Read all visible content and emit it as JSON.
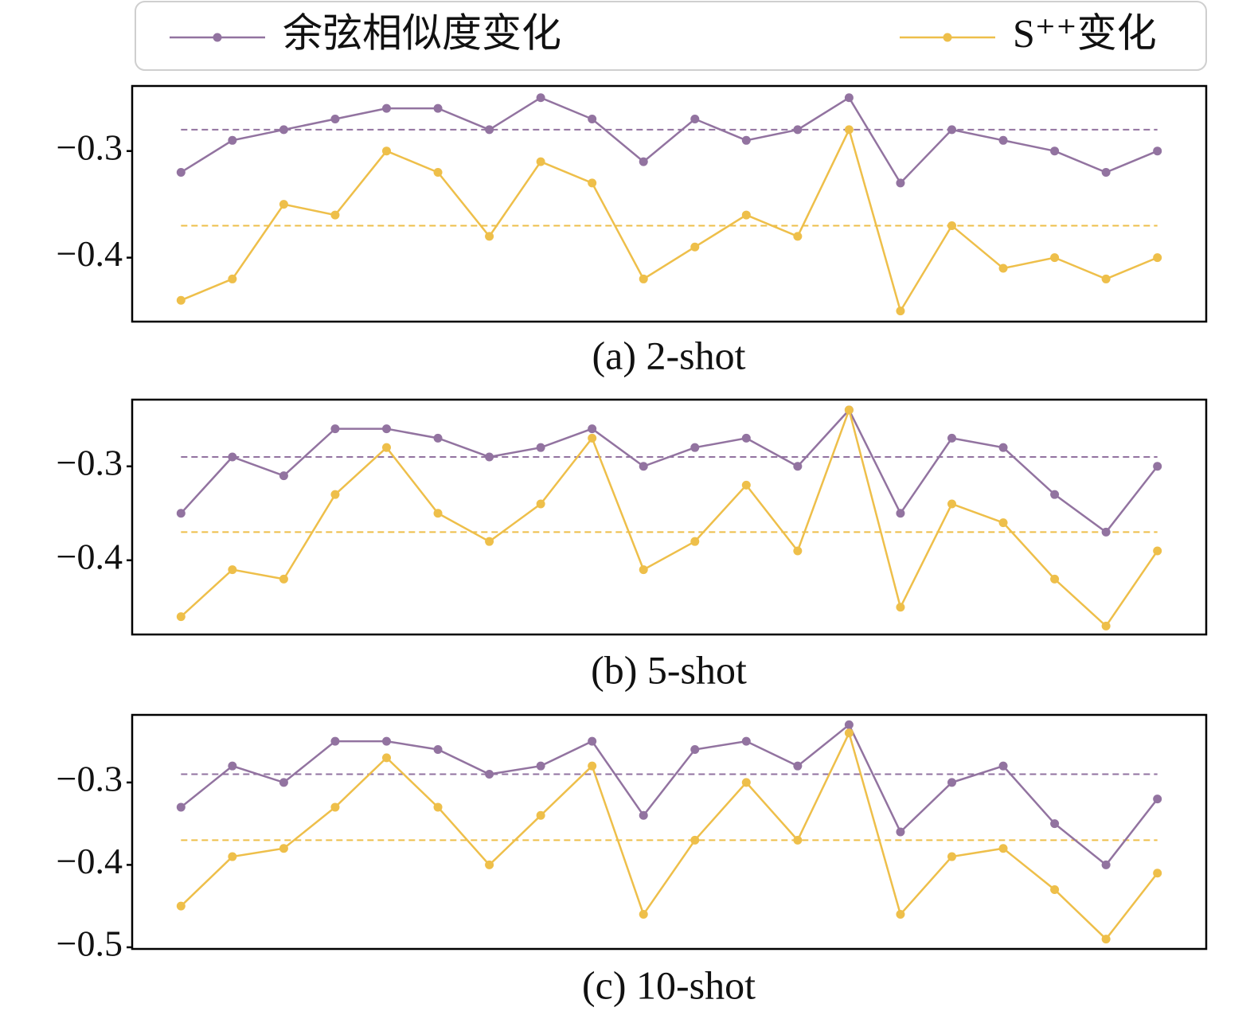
{
  "legend": {
    "position": "top",
    "entries": [
      {
        "name": "余弦相似度变化",
        "color": "#9273a0"
      },
      {
        "name": "S⁺⁺变化",
        "color": "#eebf4a"
      }
    ]
  },
  "chart_data": [
    {
      "type": "line",
      "caption": "(a) 2-shot",
      "categories": [
        null,
        null,
        null,
        null,
        null,
        null,
        null,
        null,
        null,
        null,
        null,
        null,
        null,
        null,
        null,
        null,
        null,
        null,
        null,
        null
      ],
      "ylim": [
        -0.46,
        -0.239
      ],
      "yticks": [
        {
          "value": -0.4,
          "label": "−0.4"
        },
        {
          "value": -0.3,
          "label": "−0.3"
        }
      ],
      "series": [
        {
          "values": [
            -0.32,
            -0.29,
            -0.28,
            -0.27,
            -0.26,
            -0.26,
            -0.28,
            -0.25,
            -0.27,
            -0.31,
            -0.27,
            -0.29,
            -0.28,
            -0.25,
            -0.33,
            -0.28,
            -0.29,
            -0.3,
            -0.32,
            -0.3
          ],
          "mean": -0.28
        },
        {
          "values": [
            -0.44,
            -0.42,
            -0.35,
            -0.36,
            -0.3,
            -0.32,
            -0.38,
            -0.31,
            -0.33,
            -0.42,
            -0.39,
            -0.36,
            -0.38,
            -0.28,
            -0.45,
            -0.37,
            -0.41,
            -0.4,
            -0.42,
            -0.4
          ],
          "mean": -0.37
        }
      ]
    },
    {
      "type": "line",
      "caption": "(b) 5-shot",
      "categories": [
        null,
        null,
        null,
        null,
        null,
        null,
        null,
        null,
        null,
        null,
        null,
        null,
        null,
        null,
        null,
        null,
        null,
        null,
        null,
        null
      ],
      "ylim": [
        -0.479,
        -0.229
      ],
      "yticks": [
        {
          "value": -0.4,
          "label": "−0.4"
        },
        {
          "value": -0.3,
          "label": "−0.3"
        }
      ],
      "series": [
        {
          "values": [
            -0.35,
            -0.29,
            -0.31,
            -0.26,
            -0.26,
            -0.27,
            -0.29,
            -0.28,
            -0.26,
            -0.3,
            -0.28,
            -0.27,
            -0.3,
            -0.24,
            -0.35,
            -0.27,
            -0.28,
            -0.33,
            -0.37,
            -0.3
          ],
          "mean": -0.29
        },
        {
          "values": [
            -0.46,
            -0.41,
            -0.42,
            -0.33,
            -0.28,
            -0.35,
            -0.38,
            -0.34,
            -0.27,
            -0.41,
            -0.38,
            -0.32,
            -0.39,
            -0.24,
            -0.45,
            -0.34,
            -0.36,
            -0.42,
            -0.47,
            -0.39
          ],
          "mean": -0.37
        }
      ]
    },
    {
      "type": "line",
      "caption": "(c) 10-shot",
      "categories": [
        null,
        null,
        null,
        null,
        null,
        null,
        null,
        null,
        null,
        null,
        null,
        null,
        null,
        null,
        null,
        null,
        null,
        null,
        null,
        null
      ],
      "ylim": [
        -0.502,
        -0.218
      ],
      "yticks": [
        {
          "value": -0.5,
          "label": "−0.5"
        },
        {
          "value": -0.4,
          "label": "−0.4"
        },
        {
          "value": -0.3,
          "label": "−0.3"
        }
      ],
      "series": [
        {
          "values": [
            -0.33,
            -0.28,
            -0.3,
            -0.25,
            -0.25,
            -0.26,
            -0.29,
            -0.28,
            -0.25,
            -0.34,
            -0.26,
            -0.25,
            -0.28,
            -0.23,
            -0.36,
            -0.3,
            -0.28,
            -0.35,
            -0.4,
            -0.32
          ],
          "mean": -0.29
        },
        {
          "values": [
            -0.45,
            -0.39,
            -0.38,
            -0.33,
            -0.27,
            -0.33,
            -0.4,
            -0.34,
            -0.28,
            -0.46,
            -0.37,
            -0.3,
            -0.37,
            -0.24,
            -0.46,
            -0.39,
            -0.38,
            -0.43,
            -0.49,
            -0.41
          ],
          "mean": -0.37
        }
      ]
    }
  ]
}
